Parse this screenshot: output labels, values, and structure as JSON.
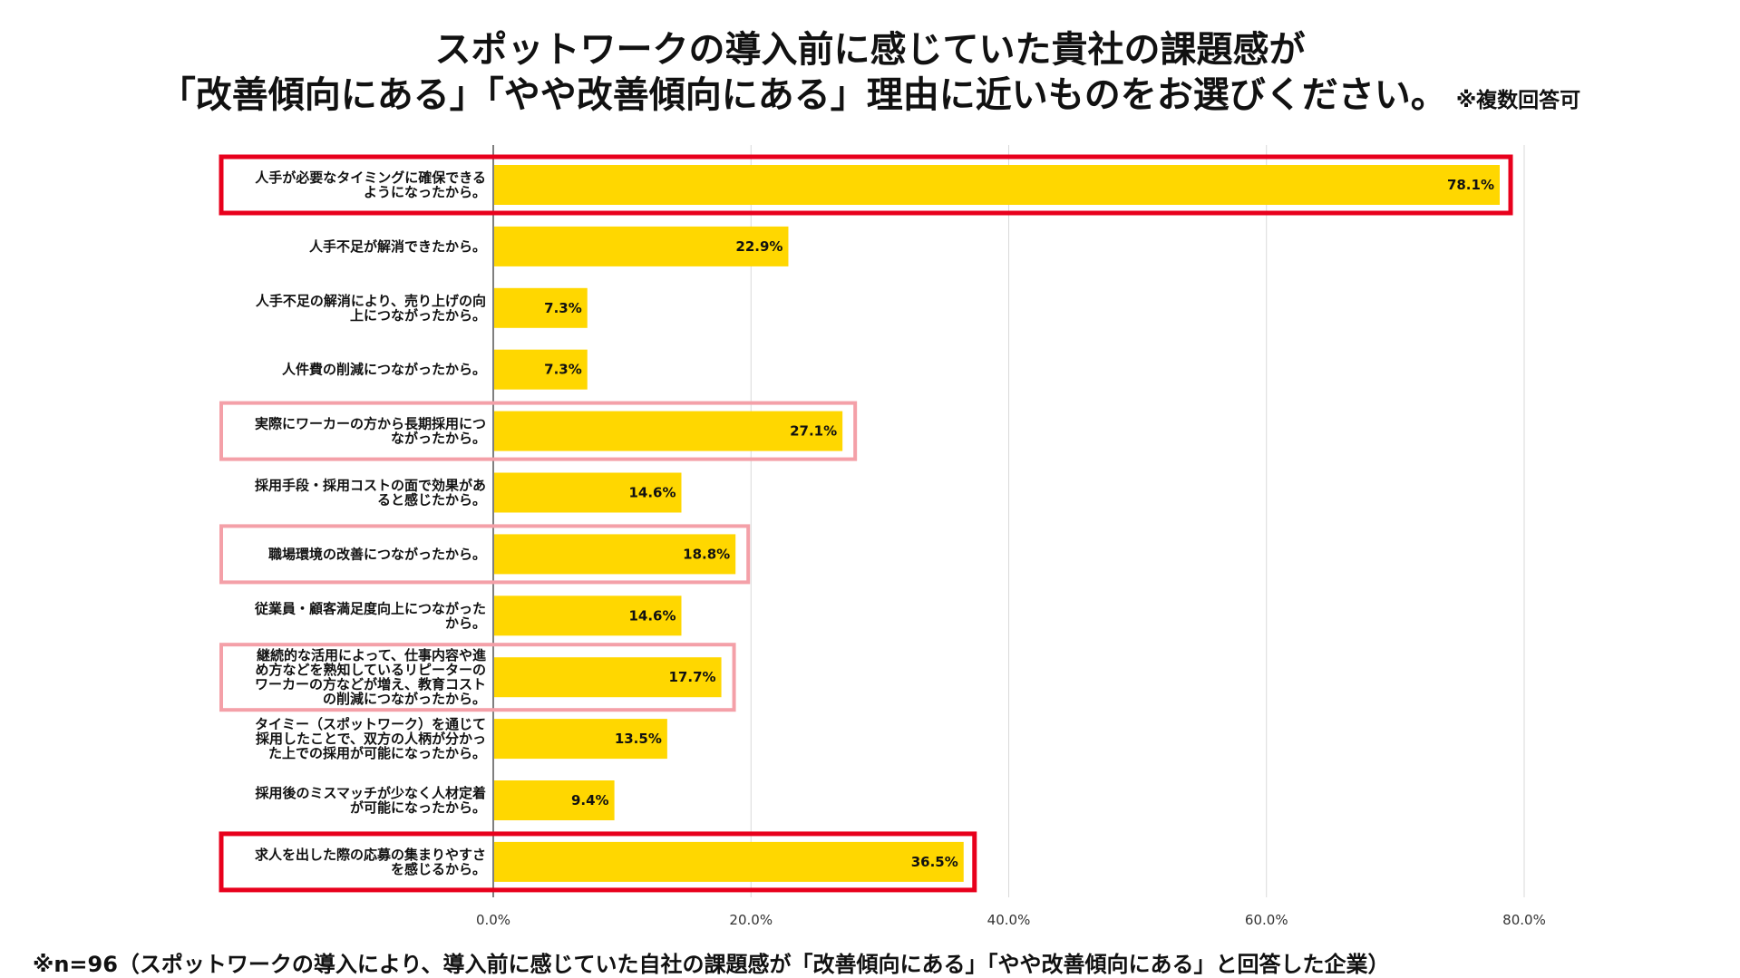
{
  "title": {
    "line1": "スポットワークの導入前に感じていた貴社の課題感が",
    "line2": "「改善傾向にある」「やや改善傾向にある」理由に近いものをお選びください。",
    "note": "※複数回答可"
  },
  "footnote": "※n=96（スポットワークの導入により、導入前に感じていた自社の課題感が「改善傾向にある」「やや改善傾向にある」と回答した企業）",
  "colors": {
    "bar": "#FFD700",
    "grid": "#D9D9D9",
    "highlight_strong": "#E8001C",
    "highlight_light": "#F4A0A8"
  },
  "chart_data": {
    "type": "bar",
    "orientation": "horizontal",
    "xlim": [
      0,
      80
    ],
    "ticks": [
      0,
      20,
      40,
      60,
      80
    ],
    "tick_labels": [
      "0.0%",
      "20.0%",
      "40.0%",
      "60.0%",
      "80.0%"
    ],
    "grid": true,
    "categories": [
      [
        "人手が必要なタイミングに確保できる",
        "ようになったから。"
      ],
      [
        "人手不足が解消できたから。"
      ],
      [
        "人手不足の解消により、売り上げの向",
        "上につながったから。"
      ],
      [
        "人件費の削減につながったから。"
      ],
      [
        "実際にワーカーの方から長期採用につ",
        "ながったから。"
      ],
      [
        "採用手段・採用コストの面で効果があ",
        "ると感じたから。"
      ],
      [
        "職場環境の改善につながったから。"
      ],
      [
        "従業員・顧客満足度向上につながった",
        "から。"
      ],
      [
        "継続的な活用によって、仕事内容や進",
        "め方などを熟知しているリピーターの",
        "ワーカーの方などが増え、教育コスト",
        "の削減につながったから。"
      ],
      [
        "タイミー（スポットワーク）を通じて",
        "採用したことで、双方の人柄が分かっ",
        "た上での採用が可能になったから。"
      ],
      [
        "採用後のミスマッチが少なく人材定着",
        "が可能になったから。"
      ],
      [
        "求人を出した際の応募の集まりやすさ",
        "を感じるから。"
      ]
    ],
    "values": [
      78.1,
      22.9,
      7.3,
      7.3,
      27.1,
      14.6,
      18.8,
      14.6,
      17.7,
      13.5,
      9.4,
      36.5
    ],
    "value_labels": [
      "78.1%",
      "22.9%",
      "7.3%",
      "7.3%",
      "27.1%",
      "14.6%",
      "18.8%",
      "14.6%",
      "17.7%",
      "13.5%",
      "9.4%",
      "36.5%"
    ],
    "highlights": [
      {
        "index": 0,
        "style": "strong"
      },
      {
        "index": 4,
        "style": "light"
      },
      {
        "index": 6,
        "style": "light"
      },
      {
        "index": 8,
        "style": "light"
      },
      {
        "index": 11,
        "style": "strong"
      }
    ]
  }
}
